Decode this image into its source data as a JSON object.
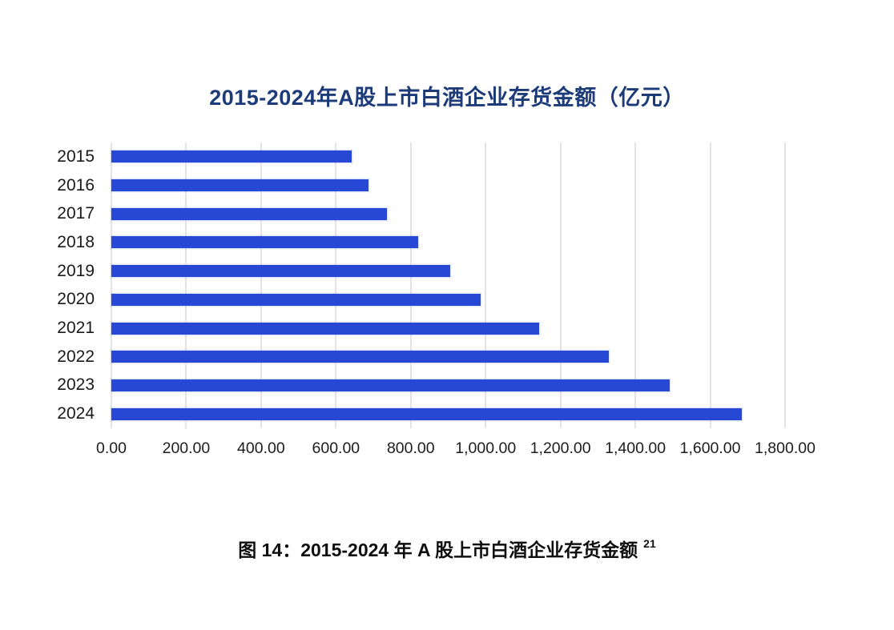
{
  "chart_data": {
    "type": "bar",
    "orientation": "horizontal",
    "title": "2015-2024年A股上市白酒企业存货金额（亿元）",
    "categories": [
      "2015",
      "2016",
      "2017",
      "2018",
      "2019",
      "2020",
      "2021",
      "2022",
      "2023",
      "2024"
    ],
    "values": [
      643,
      686,
      737,
      819,
      905,
      986,
      1143,
      1329,
      1492,
      1684
    ],
    "unit": "亿元",
    "xlim": [
      0,
      1800
    ],
    "x_tick_step": 200,
    "x_tick_labels": [
      "0.00",
      "200.00",
      "400.00",
      "600.00",
      "800.00",
      "1,000.00",
      "1,200.00",
      "1,400.00",
      "1,600.00",
      "1,800.00"
    ],
    "grid": true,
    "legend": "none",
    "colors": {
      "bar": "#2648d5",
      "gridline": "#e4e4e6",
      "title": "#1c3b78",
      "axis_text": "#1a1a1a"
    }
  },
  "caption": {
    "text": "图 14：2015-2024 年 A 股上市白酒企业存货金额",
    "superscript": "21"
  }
}
